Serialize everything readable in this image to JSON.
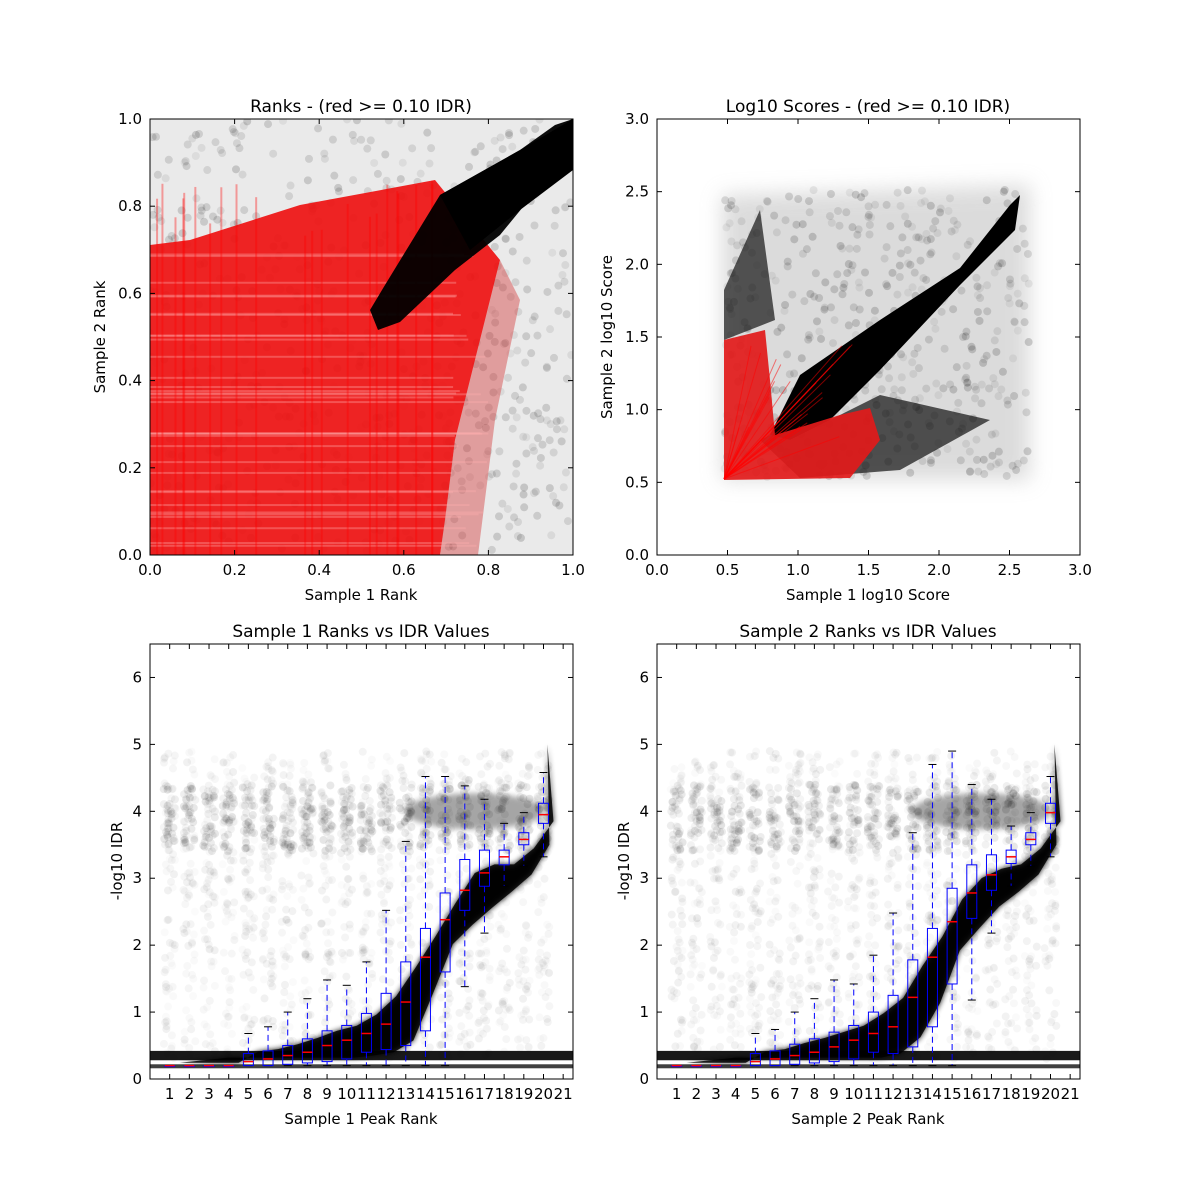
{
  "chart_data": [
    {
      "type": "scatter",
      "title": "Ranks - (red >= 0.10 IDR)",
      "xlabel": "Sample 1 Rank",
      "ylabel": "Sample 2 Rank",
      "xlim": [
        0.0,
        1.0
      ],
      "ylim": [
        0.0,
        1.0
      ],
      "xticks": [
        "0.0",
        "0.2",
        "0.4",
        "0.6",
        "0.8",
        "1.0"
      ],
      "yticks": [
        "0.0",
        "0.2",
        "0.4",
        "0.6",
        "0.8",
        "1.0"
      ],
      "grid": false,
      "colors": {
        "high_idr": "#ff0000",
        "low_idr": "#000000"
      },
      "regions": [
        {
          "color": "#ff0000",
          "desc": "irreproducible peaks",
          "x": [
            0.0,
            0.75
          ],
          "y": [
            0.0,
            0.85
          ]
        },
        {
          "color": "#000000",
          "desc": "reproducible peaks band",
          "points": [
            [
              0.53,
              0.55
            ],
            [
              0.7,
              0.82
            ],
            [
              0.85,
              0.88
            ],
            [
              1.0,
              1.0
            ]
          ]
        }
      ]
    },
    {
      "type": "scatter",
      "title": "Log10 Scores - (red >= 0.10 IDR)",
      "xlabel": "Sample 1 log10 Score",
      "ylabel": "Sample 2 log10 Score",
      "xlim": [
        0.0,
        3.0
      ],
      "ylim": [
        0.0,
        3.0
      ],
      "xticks": [
        "0.0",
        "0.5",
        "1.0",
        "1.5",
        "2.0",
        "2.5",
        "3.0"
      ],
      "yticks": [
        "0.0",
        "0.5",
        "1.0",
        "1.5",
        "2.0",
        "2.5",
        "3.0"
      ],
      "grid": false,
      "colors": {
        "high_idr": "#ff0000",
        "low_idr": "#000000"
      },
      "regions": [
        {
          "color": "#000000",
          "desc": "correlated band",
          "points": [
            [
              0.8,
              0.85
            ],
            [
              1.5,
              1.4
            ],
            [
              2.0,
              1.95
            ],
            [
              2.45,
              2.4
            ]
          ]
        },
        {
          "color": "#ff0000",
          "desc": "low score fan",
          "points": [
            [
              0.48,
              0.55
            ],
            [
              0.5,
              1.5
            ],
            [
              1.4,
              1.0
            ],
            [
              1.5,
              0.55
            ]
          ]
        }
      ]
    },
    {
      "type": "box",
      "title": "Sample 1 Ranks vs IDR Values",
      "xlabel": "Sample 1 Peak Rank",
      "ylabel": "-log10 IDR",
      "ylim": [
        0,
        6.5
      ],
      "xticks": [
        "1",
        "2",
        "3",
        "4",
        "5",
        "6",
        "7",
        "8",
        "9",
        "10",
        "11",
        "12",
        "13",
        "14",
        "15",
        "16",
        "17",
        "18",
        "19",
        "20",
        "21"
      ],
      "yticks": [
        "0",
        "1",
        "2",
        "3",
        "4",
        "5",
        "6"
      ],
      "grid": false,
      "colors": {
        "box": "#0000ff",
        "median": "#ff0000",
        "points": "#000000"
      },
      "boxes": [
        {
          "pos": 1,
          "q1": 0.2,
          "median": 0.2,
          "q3": 0.2,
          "whisker_low": 0.2,
          "whisker_high": 0.2
        },
        {
          "pos": 2,
          "q1": 0.2,
          "median": 0.2,
          "q3": 0.2,
          "whisker_low": 0.2,
          "whisker_high": 0.2
        },
        {
          "pos": 3,
          "q1": 0.2,
          "median": 0.2,
          "q3": 0.2,
          "whisker_low": 0.2,
          "whisker_high": 0.2
        },
        {
          "pos": 4,
          "q1": 0.2,
          "median": 0.2,
          "q3": 0.2,
          "whisker_low": 0.2,
          "whisker_high": 0.2
        },
        {
          "pos": 5,
          "q1": 0.2,
          "median": 0.26,
          "q3": 0.38,
          "whisker_low": 0.2,
          "whisker_high": 0.68
        },
        {
          "pos": 6,
          "q1": 0.2,
          "median": 0.3,
          "q3": 0.42,
          "whisker_low": 0.2,
          "whisker_high": 0.78
        },
        {
          "pos": 7,
          "q1": 0.22,
          "median": 0.35,
          "q3": 0.5,
          "whisker_low": 0.2,
          "whisker_high": 1.0
        },
        {
          "pos": 8,
          "q1": 0.24,
          "median": 0.4,
          "q3": 0.6,
          "whisker_low": 0.2,
          "whisker_high": 1.2
        },
        {
          "pos": 9,
          "q1": 0.26,
          "median": 0.5,
          "q3": 0.72,
          "whisker_low": 0.2,
          "whisker_high": 1.48
        },
        {
          "pos": 10,
          "q1": 0.3,
          "median": 0.58,
          "q3": 0.8,
          "whisker_low": 0.2,
          "whisker_high": 1.4
        },
        {
          "pos": 11,
          "q1": 0.4,
          "median": 0.68,
          "q3": 0.98,
          "whisker_low": 0.2,
          "whisker_high": 1.75
        },
        {
          "pos": 12,
          "q1": 0.44,
          "median": 0.82,
          "q3": 1.28,
          "whisker_low": 0.2,
          "whisker_high": 2.52
        },
        {
          "pos": 13,
          "q1": 0.5,
          "median": 1.15,
          "q3": 1.75,
          "whisker_low": 0.2,
          "whisker_high": 3.55
        },
        {
          "pos": 14,
          "q1": 0.72,
          "median": 1.82,
          "q3": 2.25,
          "whisker_low": 0.2,
          "whisker_high": 4.52
        },
        {
          "pos": 15,
          "q1": 1.6,
          "median": 2.38,
          "q3": 2.78,
          "whisker_low": 0.2,
          "whisker_high": 4.52
        },
        {
          "pos": 16,
          "q1": 2.52,
          "median": 2.82,
          "q3": 3.28,
          "whisker_low": 1.38,
          "whisker_high": 4.38
        },
        {
          "pos": 17,
          "q1": 2.88,
          "median": 3.08,
          "q3": 3.42,
          "whisker_low": 2.18,
          "whisker_high": 4.18
        },
        {
          "pos": 18,
          "q1": 3.2,
          "median": 3.32,
          "q3": 3.42,
          "whisker_low": 2.88,
          "whisker_high": 3.82
        },
        {
          "pos": 19,
          "q1": 3.5,
          "median": 3.58,
          "q3": 3.68,
          "whisker_low": 3.18,
          "whisker_high": 3.98
        },
        {
          "pos": 20,
          "q1": 3.82,
          "median": 3.95,
          "q3": 4.12,
          "whisker_low": 3.32,
          "whisker_high": 4.58
        }
      ]
    },
    {
      "type": "box",
      "title": "Sample 2 Ranks vs IDR Values",
      "xlabel": "Sample 2 Peak Rank",
      "ylabel": "-log10 IDR",
      "ylim": [
        0,
        6.5
      ],
      "xticks": [
        "1",
        "2",
        "3",
        "4",
        "5",
        "6",
        "7",
        "8",
        "9",
        "10",
        "11",
        "12",
        "13",
        "14",
        "15",
        "16",
        "17",
        "18",
        "19",
        "20",
        "21"
      ],
      "yticks": [
        "0",
        "1",
        "2",
        "3",
        "4",
        "5",
        "6"
      ],
      "grid": false,
      "colors": {
        "box": "#0000ff",
        "median": "#ff0000",
        "points": "#000000"
      },
      "boxes": [
        {
          "pos": 1,
          "q1": 0.2,
          "median": 0.2,
          "q3": 0.2,
          "whisker_low": 0.2,
          "whisker_high": 0.2
        },
        {
          "pos": 2,
          "q1": 0.2,
          "median": 0.2,
          "q3": 0.2,
          "whisker_low": 0.2,
          "whisker_high": 0.2
        },
        {
          "pos": 3,
          "q1": 0.2,
          "median": 0.2,
          "q3": 0.2,
          "whisker_low": 0.2,
          "whisker_high": 0.2
        },
        {
          "pos": 4,
          "q1": 0.2,
          "median": 0.2,
          "q3": 0.2,
          "whisker_low": 0.2,
          "whisker_high": 0.2
        },
        {
          "pos": 5,
          "q1": 0.2,
          "median": 0.26,
          "q3": 0.38,
          "whisker_low": 0.2,
          "whisker_high": 0.68
        },
        {
          "pos": 6,
          "q1": 0.2,
          "median": 0.3,
          "q3": 0.42,
          "whisker_low": 0.2,
          "whisker_high": 0.74
        },
        {
          "pos": 7,
          "q1": 0.22,
          "median": 0.35,
          "q3": 0.52,
          "whisker_low": 0.2,
          "whisker_high": 1.0
        },
        {
          "pos": 8,
          "q1": 0.24,
          "median": 0.4,
          "q3": 0.6,
          "whisker_low": 0.2,
          "whisker_high": 1.2
        },
        {
          "pos": 9,
          "q1": 0.26,
          "median": 0.48,
          "q3": 0.7,
          "whisker_low": 0.2,
          "whisker_high": 1.48
        },
        {
          "pos": 10,
          "q1": 0.3,
          "median": 0.58,
          "q3": 0.8,
          "whisker_low": 0.2,
          "whisker_high": 1.42
        },
        {
          "pos": 11,
          "q1": 0.4,
          "median": 0.68,
          "q3": 1.0,
          "whisker_low": 0.2,
          "whisker_high": 1.85
        },
        {
          "pos": 12,
          "q1": 0.38,
          "median": 0.78,
          "q3": 1.25,
          "whisker_low": 0.2,
          "whisker_high": 2.48
        },
        {
          "pos": 13,
          "q1": 0.48,
          "median": 1.22,
          "q3": 1.78,
          "whisker_low": 0.2,
          "whisker_high": 3.68
        },
        {
          "pos": 14,
          "q1": 0.78,
          "median": 1.82,
          "q3": 2.25,
          "whisker_low": 0.2,
          "whisker_high": 4.7
        },
        {
          "pos": 15,
          "q1": 1.42,
          "median": 2.35,
          "q3": 2.85,
          "whisker_low": 0.2,
          "whisker_high": 4.9
        },
        {
          "pos": 16,
          "q1": 2.4,
          "median": 2.78,
          "q3": 3.2,
          "whisker_low": 1.18,
          "whisker_high": 4.4
        },
        {
          "pos": 17,
          "q1": 2.82,
          "median": 3.05,
          "q3": 3.35,
          "whisker_low": 2.18,
          "whisker_high": 4.18
        },
        {
          "pos": 18,
          "q1": 3.22,
          "median": 3.32,
          "q3": 3.42,
          "whisker_low": 2.88,
          "whisker_high": 3.78
        },
        {
          "pos": 19,
          "q1": 3.5,
          "median": 3.58,
          "q3": 3.68,
          "whisker_low": 3.18,
          "whisker_high": 3.98
        },
        {
          "pos": 20,
          "q1": 3.82,
          "median": 3.98,
          "q3": 4.12,
          "whisker_low": 3.32,
          "whisker_high": 4.52
        }
      ]
    }
  ]
}
